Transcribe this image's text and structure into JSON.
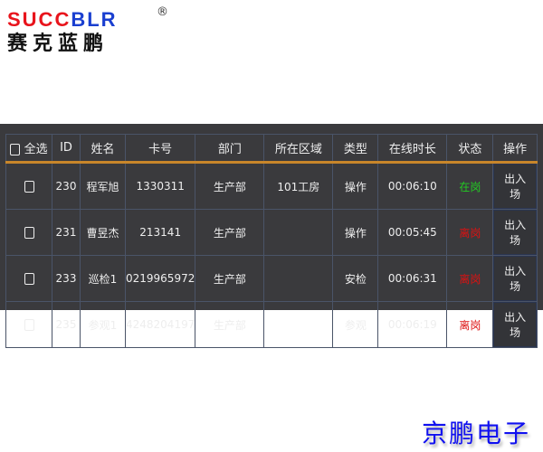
{
  "logo": {
    "en_red": "SUCC",
    "en_blue": "BLR",
    "reg": "®",
    "cn": "赛克蓝鹏"
  },
  "footer_brand": "京鹏电子",
  "table": {
    "headers": [
      "全选",
      "ID",
      "姓名",
      "卡号",
      "部门",
      "所在区域",
      "类型",
      "在线时长",
      "状态",
      "操作"
    ],
    "rows": [
      {
        "id": "230",
        "name": "程军旭",
        "card": "1330311",
        "dept": "生产部",
        "area": "101工房",
        "type": "操作",
        "online": "00:06:10",
        "status": "在岗",
        "status_color": "#22cc22",
        "action": "出入场"
      },
      {
        "id": "231",
        "name": "曹昱杰",
        "card": "213141",
        "dept": "生产部",
        "area": "",
        "type": "操作",
        "online": "00:05:45",
        "status": "离岗",
        "status_color": "#dd1111",
        "action": "出入场"
      },
      {
        "id": "233",
        "name": "巡检1",
        "card": "0219965972",
        "dept": "生产部",
        "area": "",
        "type": "安检",
        "online": "00:06:31",
        "status": "离岗",
        "status_color": "#dd1111",
        "action": "出入场"
      },
      {
        "id": "235",
        "name": "参观1",
        "card": "4248204197",
        "dept": "生产部",
        "area": "",
        "type": "参观",
        "online": "00:06:19",
        "status": "离岗",
        "status_color": "#dd1111",
        "action": "出入场"
      }
    ]
  }
}
